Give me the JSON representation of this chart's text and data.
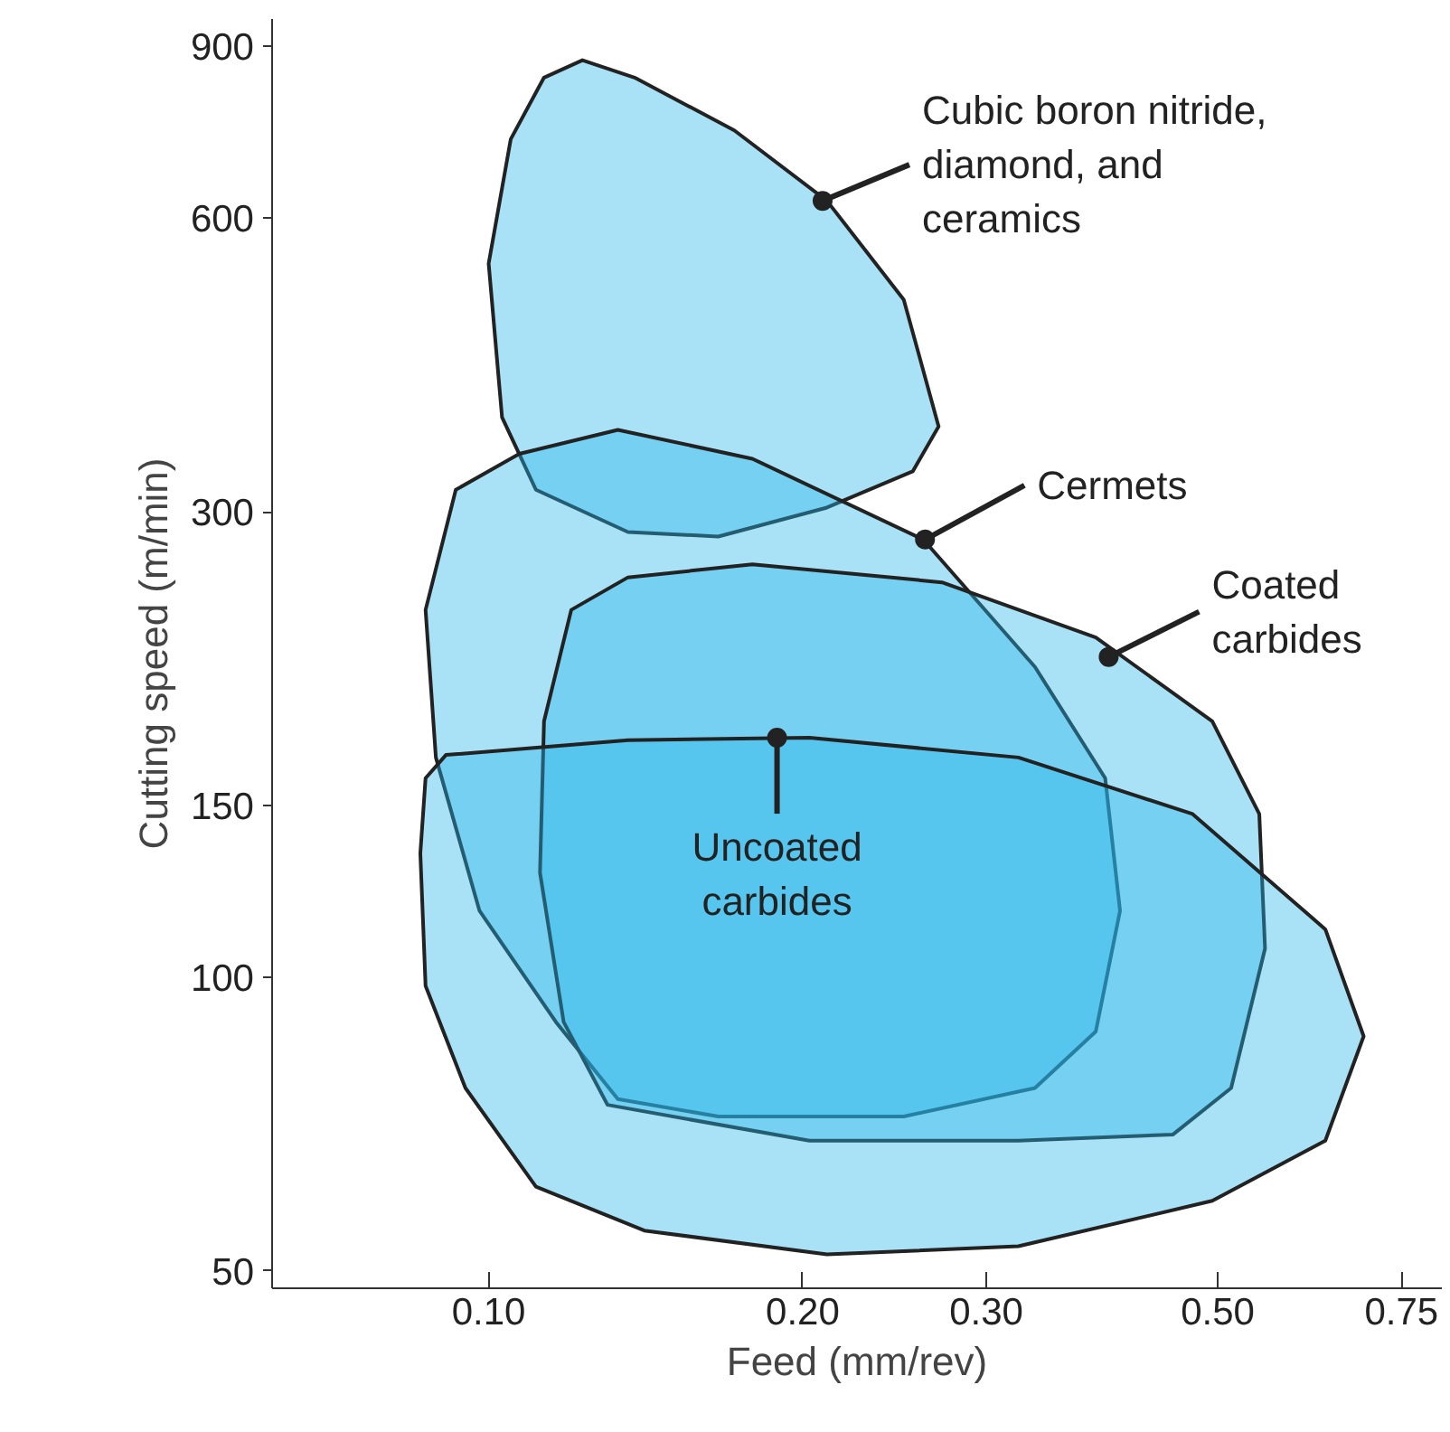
{
  "chart_data": {
    "type": "area",
    "xlabel": "Feed (mm/rev)",
    "ylabel": "Cutting speed (m/min)",
    "log": "xy",
    "xlim": [
      0.062,
      0.82
    ],
    "ylim": [
      48,
      960
    ],
    "xticks": [
      {
        "value": 0.1,
        "label": "0.10"
      },
      {
        "value": 0.2,
        "label": "0.20"
      },
      {
        "value": 0.3,
        "label": "0.30"
      },
      {
        "value": 0.5,
        "label": "0.50"
      },
      0.75
    ],
    "yticks": [
      50,
      100,
      150,
      300,
      600,
      900
    ],
    "series": [
      {
        "color": "#29b6ec",
        "x": [
          0.123,
          0.138,
          0.172,
          0.211,
          0.25,
          0.27,
          0.255,
          0.211,
          0.166,
          0.136,
          0.111,
          0.103,
          0.1,
          0.105,
          0.113
        ],
        "values": [
          871,
          836,
          738,
          625,
          495,
          367,
          330,
          303,
          283,
          286,
          316,
          375,
          539,
          723,
          836
        ]
      },
      {
        "color": "#29b6ec",
        "x": [
          0.133,
          0.179,
          0.261,
          0.334,
          0.39,
          0.403,
          0.382,
          0.334,
          0.25,
          0.166,
          0.133,
          0.116,
          0.098,
          0.089,
          0.087,
          0.093,
          0.107
        ],
        "values": [
          364,
          340,
          281,
          208,
          160,
          117,
          88,
          77,
          72,
          72,
          75,
          90,
          117,
          168,
          238,
          316,
          344
        ]
      },
      {
        "color": "#29b6ec",
        "x": [
          0.136,
          0.179,
          0.272,
          0.382,
          0.494,
          0.548,
          0.555,
          0.515,
          0.453,
          0.322,
          0.203,
          0.13,
          0.118,
          0.112,
          0.113,
          0.12
        ],
        "values": [
          257,
          265,
          254,
          223,
          183,
          147,
          107,
          77,
          69,
          68,
          68,
          74,
          90,
          128,
          183,
          238
        ]
      },
      {
        "color": "#29b6ec",
        "x": [
          0.091,
          0.136,
          0.203,
          0.322,
          0.473,
          0.634,
          0.69,
          0.634,
          0.494,
          0.322,
          0.211,
          0.141,
          0.111,
          0.095,
          0.087,
          0.086,
          0.087
        ],
        "values": [
          169,
          175,
          176,
          168,
          147,
          112,
          87,
          68,
          59,
          53,
          52,
          55,
          61,
          77,
          98,
          134,
          160
        ]
      }
    ],
    "annotations": [
      {
        "text": "Cubic boron nitride,\ndiamond, and\nceramics",
        "x": 0.209,
        "y": 625
      },
      {
        "text": "Cermets",
        "x": 0.262,
        "y": 281
      },
      {
        "text": "Coated\ncarbides",
        "x": 0.393,
        "y": 213
      },
      {
        "text": "Uncoated\ncarbides",
        "x": 0.189,
        "y": 176
      }
    ]
  }
}
